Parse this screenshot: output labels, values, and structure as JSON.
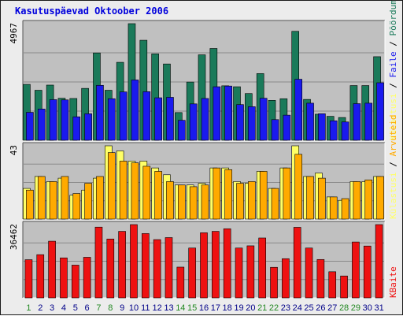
{
  "title": "Kasutuspäevad Oktoober 2006",
  "colors": {
    "title": "#0000dd",
    "panel_bg": "#c0c0c0",
    "grid": "#8a8a8a",
    "visits": "#1a7a5a",
    "pages": "#1a1aee",
    "hits": "#ffff66",
    "files": "#ffaa00",
    "bytes": "#ee1111",
    "weekday_label": "#000088",
    "weekend_label": "#228822"
  },
  "chart_data": [
    {
      "type": "bar",
      "y_max_label": "4967",
      "legend_labels": [
        "Pöördumisi",
        "Faile",
        "Külastusi"
      ],
      "legend_separator": " / ",
      "ylim": [
        0,
        4967
      ],
      "categories": [
        "1",
        "2",
        "3",
        "4",
        "5",
        "6",
        "7",
        "8",
        "9",
        "10",
        "11",
        "12",
        "13",
        "14",
        "15",
        "16",
        "17",
        "18",
        "19",
        "20",
        "21",
        "22",
        "23",
        "24",
        "25",
        "26",
        "27",
        "28",
        "29",
        "30",
        "31"
      ],
      "weekend_days": [
        "1",
        "7",
        "8",
        "14",
        "15",
        "21",
        "22",
        "28",
        "29"
      ],
      "series": [
        {
          "name": "Pöördumisi",
          "values": [
            2380,
            2130,
            2350,
            1790,
            1780,
            2210,
            3720,
            2130,
            3320,
            4967,
            4260,
            3680,
            3250,
            1180,
            2480,
            3640,
            3910,
            2320,
            2280,
            1990,
            2840,
            1700,
            1770,
            4640,
            1740,
            1110,
            1020,
            970,
            2330,
            2330,
            3560
          ]
        },
        {
          "name": "Faile",
          "values": [
            1190,
            1330,
            1730,
            1720,
            1000,
            1130,
            2340,
            1770,
            2060,
            2570,
            2070,
            1810,
            1830,
            850,
            1550,
            1780,
            2280,
            2310,
            1520,
            1430,
            1790,
            880,
            1070,
            2600,
            1580,
            1130,
            830,
            780,
            1560,
            1580,
            2450
          ]
        }
      ]
    },
    {
      "type": "bar",
      "y_max_label": "43",
      "legend_labels": [
        "Arvuteid",
        "Külastusi"
      ],
      "legend_separator": " / ",
      "ylim": [
        0,
        43
      ],
      "categories": [
        "1",
        "2",
        "3",
        "4",
        "5",
        "6",
        "7",
        "8",
        "9",
        "10",
        "11",
        "12",
        "13",
        "14",
        "15",
        "16",
        "17",
        "18",
        "19",
        "20",
        "21",
        "22",
        "23",
        "24",
        "25",
        "26",
        "27",
        "28",
        "29",
        "30",
        "31"
      ],
      "series": [
        {
          "name": "Külastusi",
          "values": [
            18,
            25,
            22,
            24,
            14,
            17,
            24,
            43,
            40,
            34,
            34,
            30,
            26,
            20,
            20,
            21,
            30,
            30,
            22,
            21,
            28,
            18,
            30,
            43,
            25,
            27,
            13,
            11,
            22,
            22,
            25
          ]
        },
        {
          "name": "Arvuteid",
          "values": [
            17,
            25,
            22,
            25,
            15,
            21,
            25,
            39,
            34,
            33,
            31,
            28,
            22,
            20,
            19,
            20,
            30,
            29,
            21,
            22,
            28,
            18,
            30,
            38,
            25,
            24,
            13,
            12,
            22,
            23,
            25
          ]
        }
      ]
    },
    {
      "type": "bar",
      "y_max_label": "36462",
      "legend_labels": [
        "KBaite"
      ],
      "legend_separator": " / ",
      "ylim": [
        0,
        36462
      ],
      "categories": [
        "1",
        "2",
        "3",
        "4",
        "5",
        "6",
        "7",
        "8",
        "9",
        "10",
        "11",
        "12",
        "13",
        "14",
        "15",
        "16",
        "17",
        "18",
        "19",
        "20",
        "21",
        "22",
        "23",
        "24",
        "25",
        "26",
        "27",
        "28",
        "29",
        "30",
        "31"
      ],
      "series": [
        {
          "name": "KBaite",
          "values": [
            19000,
            21500,
            28200,
            19900,
            16300,
            20200,
            35200,
            29300,
            33100,
            36462,
            32000,
            29000,
            30000,
            15300,
            24800,
            32400,
            33100,
            34400,
            24800,
            25900,
            29800,
            15200,
            19500,
            35100,
            24800,
            19100,
            13000,
            10900,
            27800,
            25800,
            36462
          ]
        }
      ]
    }
  ]
}
